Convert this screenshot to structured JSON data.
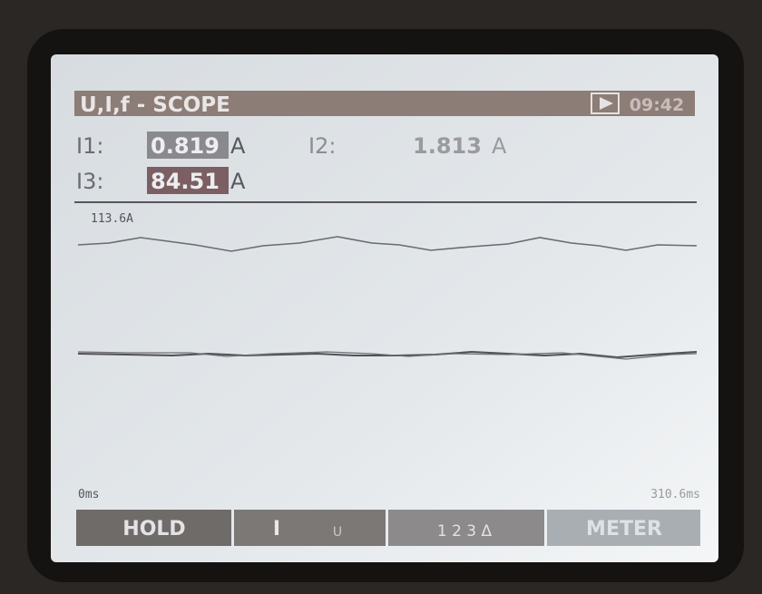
{
  "header": {
    "title": "U,I,f - SCOPE",
    "time": "09:42"
  },
  "readings": [
    {
      "label": "I1:",
      "value": "0.819",
      "unit": "A"
    },
    {
      "label": "I2:",
      "value": "1.813",
      "unit": "A"
    },
    {
      "label": "I3:",
      "value": "84.51",
      "unit": "A"
    }
  ],
  "scope": {
    "scale": "113.6A",
    "x_start": "0ms",
    "x_end": "310.6ms"
  },
  "softkeys": [
    "HOLD",
    "I",
    "U",
    "1 2 3 Δ",
    "METER"
  ]
}
